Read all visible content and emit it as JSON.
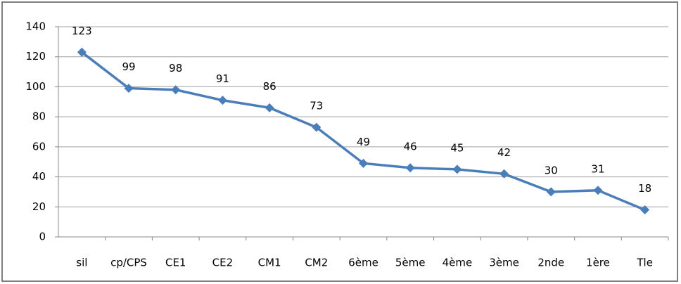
{
  "chart_data": {
    "type": "line",
    "categories": [
      "sil",
      "cp/CPS",
      "CE1",
      "CE2",
      "CM1",
      "CM2",
      "6ème",
      "5ème",
      "4ème",
      "3ème",
      "2nde",
      "1ère",
      "Tle"
    ],
    "series": [
      {
        "name": null,
        "color": "#4a7ebb",
        "values": [
          123,
          99,
          98,
          91,
          86,
          73,
          49,
          46,
          45,
          42,
          30,
          31,
          18
        ]
      }
    ],
    "ylim": [
      0,
      140
    ],
    "yticks": [
      0,
      20,
      40,
      60,
      80,
      100,
      120,
      140
    ],
    "grid": true,
    "data_labels": true
  }
}
